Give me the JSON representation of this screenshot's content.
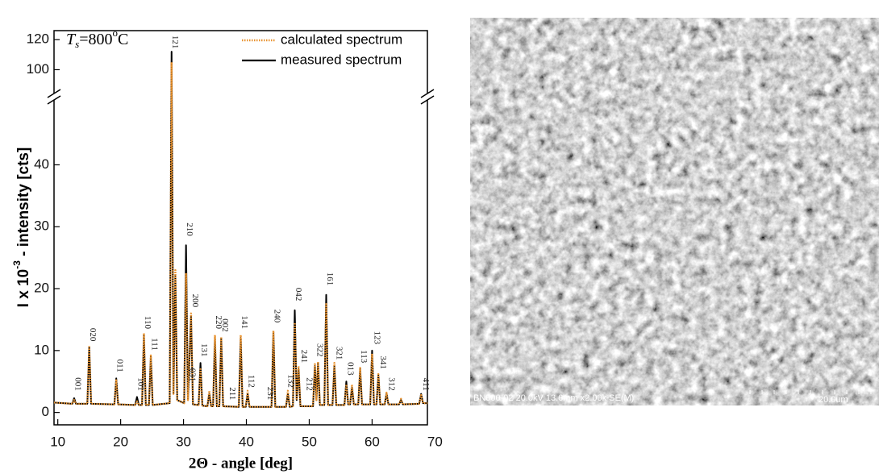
{
  "chart_data": {
    "type": "line",
    "sample_label": {
      "symbol": "T",
      "subscript": "s",
      "value": "=800",
      "superscript": "o",
      "unit": "C"
    },
    "xlabel": "2Θ - angle [deg]",
    "ylabel": {
      "main": "I x 10",
      "sup": "-3",
      "rest": " - intensity  [cts]"
    },
    "x": [
      9.4,
      12.3,
      12.6,
      12.9,
      14.7,
      15.0,
      15.3,
      19.0,
      19.3,
      19.6,
      22.3,
      22.6,
      22.9,
      23.4,
      23.7,
      24.0,
      24.5,
      24.8,
      25.1,
      27.8,
      28.1,
      28.4,
      28.7,
      29.0,
      30.1,
      30.4,
      30.7,
      31.2,
      31.5,
      32.4,
      32.7,
      33.0,
      33.8,
      34.1,
      34.4,
      34.7,
      35.0,
      35.3,
      35.7,
      36.0,
      36.3,
      38.8,
      39.1,
      39.4,
      39.9,
      40.2,
      40.5,
      44.0,
      44.3,
      44.6,
      46.3,
      46.6,
      46.9,
      47.4,
      47.7,
      48.0,
      48.3,
      48.6,
      50.6,
      50.9,
      51.15,
      51.4,
      51.7,
      52.4,
      52.7,
      53.0,
      53.7,
      54.0,
      54.3,
      55.6,
      55.9,
      56.2,
      56.5,
      56.8,
      57.1,
      57.8,
      58.1,
      58.4,
      59.7,
      60.0,
      60.3,
      60.7,
      61.0,
      61.3,
      62.0,
      62.3,
      62.6,
      64.3,
      64.6,
      64.9,
      67.5,
      67.8,
      68.1,
      68.8
    ],
    "series": [
      {
        "name": "calculated spectrum",
        "color": "#e8912d",
        "style": "dotted",
        "values": [
          1.6,
          1.4,
          2.0,
          1.4,
          1.4,
          10.8,
          1.4,
          1.3,
          5.2,
          1.3,
          1.2,
          1.8,
          1.2,
          1.2,
          12.8,
          1.2,
          1.2,
          9.2,
          1.2,
          1.5,
          105,
          3,
          23,
          2,
          1.5,
          22.5,
          2,
          16,
          1.3,
          1.2,
          7,
          1.1,
          1.0,
          3.5,
          1.0,
          1.0,
          12.5,
          1.0,
          1.0,
          12.2,
          1.0,
          0.9,
          12.5,
          0.9,
          0.9,
          3.5,
          0.9,
          0.9,
          13.2,
          0.9,
          0.9,
          3.5,
          0.9,
          1.0,
          14.5,
          2,
          7.5,
          1.0,
          1.0,
          7.8,
          2,
          8.2,
          1.2,
          1.2,
          17.5,
          1.2,
          1.2,
          8,
          1.2,
          1.2,
          4.5,
          1.3,
          1.3,
          4.5,
          1.3,
          1.3,
          7.2,
          1.3,
          1.3,
          9.5,
          1.3,
          1.3,
          6.2,
          1.3,
          1.3,
          3.2,
          1.3,
          1.3,
          2.2,
          1.3,
          1.4,
          2.8,
          1.5,
          1.5
        ]
      },
      {
        "name": "measured spectrum",
        "color": "#000000",
        "style": "solid",
        "values": [
          1.6,
          1.4,
          2.3,
          1.4,
          1.4,
          10.5,
          1.4,
          1.3,
          5.5,
          1.3,
          1.2,
          2.5,
          1.2,
          1.2,
          12.5,
          1.2,
          1.2,
          9,
          1.2,
          1.5,
          112,
          3,
          22,
          2,
          1.5,
          27,
          2,
          15.5,
          1.3,
          1.2,
          8,
          1.1,
          1.0,
          3,
          1.0,
          1.0,
          12,
          1.0,
          1.0,
          12,
          1.0,
          0.9,
          12,
          0.9,
          0.9,
          3,
          0.9,
          0.9,
          13,
          0.9,
          0.9,
          3,
          0.9,
          1.0,
          16.5,
          2,
          7,
          1.0,
          1.0,
          7.5,
          2,
          8,
          1.2,
          1.2,
          19,
          1.2,
          1.2,
          7.5,
          1.2,
          1.2,
          5,
          1.3,
          1.3,
          4,
          1.3,
          1.3,
          7,
          1.3,
          1.3,
          10,
          1.3,
          1.3,
          6,
          1.3,
          1.3,
          3,
          1.3,
          1.3,
          2,
          1.3,
          1.4,
          3,
          1.5,
          1.5
        ]
      }
    ],
    "xlim": [
      9.4,
      68.8
    ],
    "xticks": [
      10,
      20,
      30,
      40,
      50,
      60,
      70
    ],
    "ylim": [
      -2,
      126
    ],
    "y_break": [
      51,
      82
    ],
    "yticks": [
      0,
      10,
      20,
      30,
      40,
      100,
      120
    ],
    "legend": "upper right",
    "annotations": [
      {
        "text": "001",
        "x": 12.6,
        "y": 3.5
      },
      {
        "text": "020",
        "x": 15.0,
        "y": 11.5
      },
      {
        "text": "011",
        "x": 19.3,
        "y": 6.5
      },
      {
        "text": "101",
        "x": 22.6,
        "y": 3.5
      },
      {
        "text": "110",
        "x": 23.7,
        "y": 13.5
      },
      {
        "text": "111",
        "x": 24.8,
        "y": 10
      },
      {
        "text": "121",
        "x": 28.1,
        "y": 114
      },
      {
        "text": "031",
        "x": 30.8,
        "y": 5
      },
      {
        "text": "210",
        "x": 30.4,
        "y": 28.5
      },
      {
        "text": "200",
        "x": 31.3,
        "y": 17
      },
      {
        "text": "131",
        "x": 32.7,
        "y": 9
      },
      {
        "text": "220",
        "x": 35.0,
        "y": 13.5
      },
      {
        "text": "002",
        "x": 36.0,
        "y": 13
      },
      {
        "text": "211",
        "x": 37.2,
        "y": 2
      },
      {
        "text": "141",
        "x": 39.1,
        "y": 13.5
      },
      {
        "text": "112",
        "x": 40.2,
        "y": 4
      },
      {
        "text": "231",
        "x": 43.2,
        "y": 2
      },
      {
        "text": "240",
        "x": 44.3,
        "y": 14.5
      },
      {
        "text": "132",
        "x": 46.5,
        "y": 4
      },
      {
        "text": "042",
        "x": 47.7,
        "y": 18
      },
      {
        "text": "241",
        "x": 48.6,
        "y": 8
      },
      {
        "text": "212",
        "x": 49.4,
        "y": 3.5
      },
      {
        "text": "322",
        "x": 51.1,
        "y": 9
      },
      {
        "text": "161",
        "x": 52.7,
        "y": 20.5
      },
      {
        "text": "321",
        "x": 54.2,
        "y": 8.5
      },
      {
        "text": "013",
        "x": 56.0,
        "y": 6
      },
      {
        "text": "113",
        "x": 58.1,
        "y": 8
      },
      {
        "text": "123",
        "x": 60.2,
        "y": 11
      },
      {
        "text": "341",
        "x": 61.2,
        "y": 7
      },
      {
        "text": "312",
        "x": 62.5,
        "y": 3.5
      },
      {
        "text": "411",
        "x": 68.0,
        "y": 3.5
      }
    ]
  },
  "image": {
    "caption": "BN800-02 20.0kV 13.6mm x2.00k SE(M)",
    "scale_label": "20.0um"
  }
}
